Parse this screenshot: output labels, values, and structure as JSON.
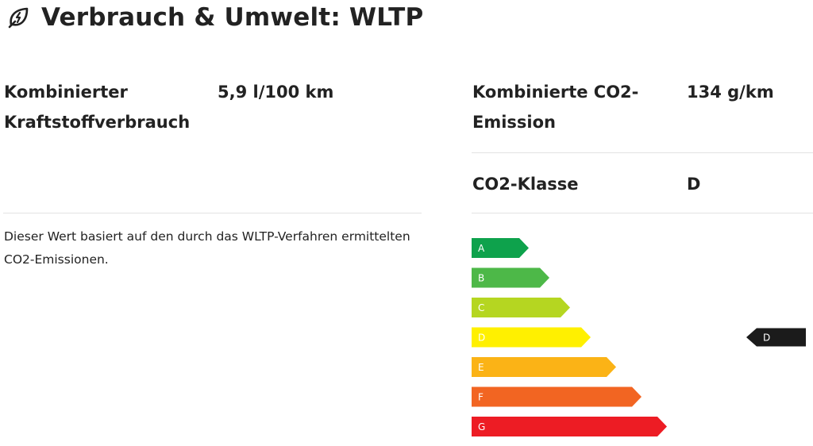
{
  "header": {
    "title": "Verbrauch & Umwelt: WLTP",
    "icon": "leaf-lightning-icon"
  },
  "consumption": {
    "label": "Kombinierter Kraftstoffverbrauch",
    "value": "5,9 l/100 km"
  },
  "emission": {
    "label": "Kombinierte CO2-Emission",
    "value": "134 g/km"
  },
  "co2_class": {
    "label": "CO2-Klasse",
    "value": "D"
  },
  "note": "Dieser Wert basiert auf den durch das WLTP-Verfahren ermittelten CO2-Emissionen.",
  "energy_label": {
    "classes": [
      {
        "letter": "A",
        "color": "#0ea24c"
      },
      {
        "letter": "B",
        "color": "#4db848"
      },
      {
        "letter": "C",
        "color": "#b5d621"
      },
      {
        "letter": "D",
        "color": "#fff000"
      },
      {
        "letter": "E",
        "color": "#fbb316"
      },
      {
        "letter": "F",
        "color": "#f26522"
      },
      {
        "letter": "G",
        "color": "#ed1c24"
      }
    ],
    "current": "D",
    "marker_color": "#1b1b1b"
  }
}
